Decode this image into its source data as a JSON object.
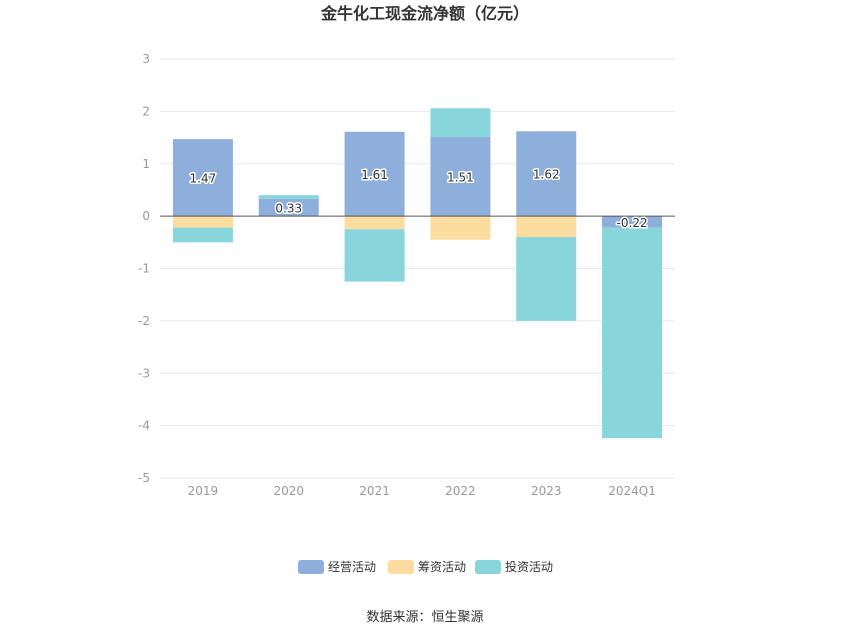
{
  "chart_data": {
    "type": "bar",
    "stacked": true,
    "title": "金牛化工现金流净额（亿元）",
    "categories": [
      "2019",
      "2020",
      "2021",
      "2022",
      "2023",
      "2024Q1"
    ],
    "series": [
      {
        "name": "经营活动",
        "color": "#8eaedb",
        "values": [
          1.47,
          0.33,
          1.61,
          1.51,
          1.62,
          -0.22
        ],
        "labels": [
          "1.47",
          "0.33",
          "1.61",
          "1.51",
          "1.62",
          "-0.22"
        ]
      },
      {
        "name": "筹资活动",
        "color": "#fddca0",
        "values": [
          -0.22,
          0.0,
          -0.25,
          -0.45,
          -0.4,
          0.0
        ]
      },
      {
        "name": "投资活动",
        "color": "#88d6db",
        "values": [
          -0.28,
          0.07,
          -1.0,
          0.55,
          -1.6,
          -4.02
        ]
      }
    ],
    "ylim": [
      -5,
      3
    ],
    "yticks": [
      3,
      2,
      1,
      0,
      -1,
      -2,
      -3,
      -4,
      -5
    ],
    "xlabel": "",
    "ylabel": "",
    "grid": true,
    "legend": "bottom-center"
  },
  "source_text": "数据来源：恒生聚源"
}
